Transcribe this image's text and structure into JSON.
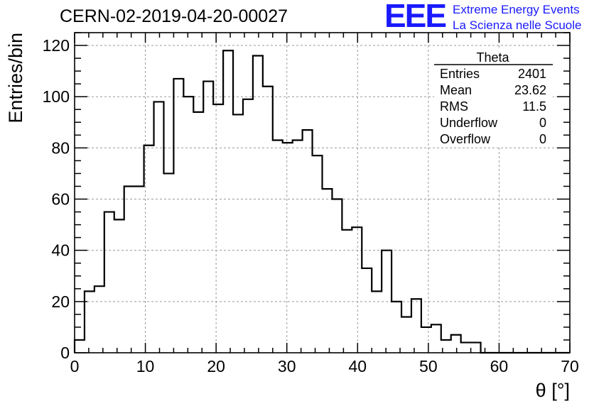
{
  "chart_data": {
    "type": "bar",
    "title": "CERN-02-2019-04-20-00027",
    "xlabel": "θ [°]",
    "ylabel": "Entries/bin",
    "xlim": [
      0,
      70
    ],
    "ylim": [
      0,
      125
    ],
    "bin_width": 1.4,
    "x_ticks": [
      0,
      10,
      20,
      30,
      40,
      50,
      60,
      70
    ],
    "y_ticks": [
      0,
      20,
      40,
      60,
      80,
      100,
      120
    ],
    "grid": true,
    "values": [
      5,
      24,
      26,
      55,
      52,
      65,
      65,
      81,
      98,
      70,
      107,
      100,
      94,
      106,
      97,
      118,
      93,
      99,
      116,
      104,
      83,
      82,
      83,
      87,
      77,
      64,
      60,
      48,
      49,
      33,
      24,
      40,
      20,
      14,
      21,
      10,
      11,
      5,
      7,
      4,
      4,
      0,
      0,
      0,
      0,
      0,
      0,
      0,
      0,
      0
    ]
  },
  "stats_box": {
    "title": "Theta",
    "rows": [
      {
        "label": "Entries",
        "value": "2401"
      },
      {
        "label": "Mean",
        "value": "23.62"
      },
      {
        "label": "RMS",
        "value": "11.5"
      },
      {
        "label": "Underflow",
        "value": "0"
      },
      {
        "label": "Overflow",
        "value": "0"
      }
    ]
  },
  "logo": {
    "mark": "EEE",
    "line1": "Extreme Energy Events",
    "line2": "La Scienza nelle Scuole",
    "color": "#1a1aff"
  }
}
